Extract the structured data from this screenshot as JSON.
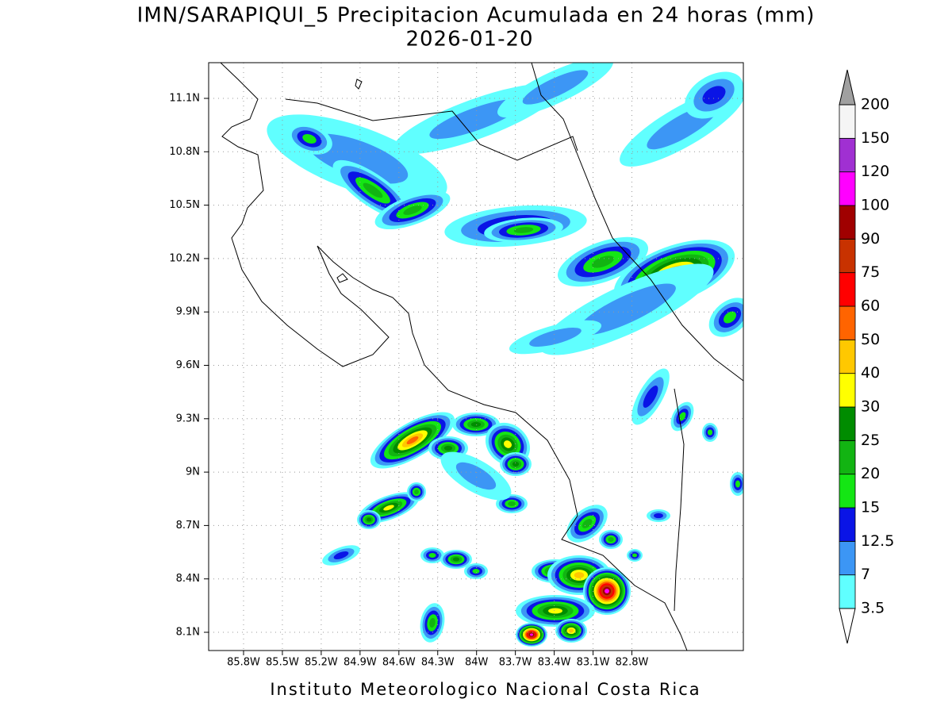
{
  "header": {
    "title": "IMN/SARAPIQUI_5 Precipitacion Acumulada en 24 horas (mm)",
    "subtitle": "2026-01-20"
  },
  "map": {
    "lon_labels": [
      "85.8W",
      "85.5W",
      "85.2W",
      "84.9W",
      "84.6W",
      "84.3W",
      "84W",
      "83.7W",
      "83.4W",
      "83.1W",
      "82.8W"
    ],
    "lat_labels": [
      "11.1N",
      "10.8N",
      "10.5N",
      "10.2N",
      "9.9N",
      "9.6N",
      "9.3N",
      "9N",
      "8.7N",
      "8.4N",
      "8.1N"
    ]
  },
  "colorbar": {
    "labels": [
      "3.5",
      "7",
      "12.5",
      "15",
      "20",
      "25",
      "30",
      "40",
      "50",
      "60",
      "75",
      "90",
      "100",
      "120",
      "150",
      "200"
    ]
  },
  "footer": {
    "credit": "Instituto Meteorologico Nacional Costa Rica"
  }
}
